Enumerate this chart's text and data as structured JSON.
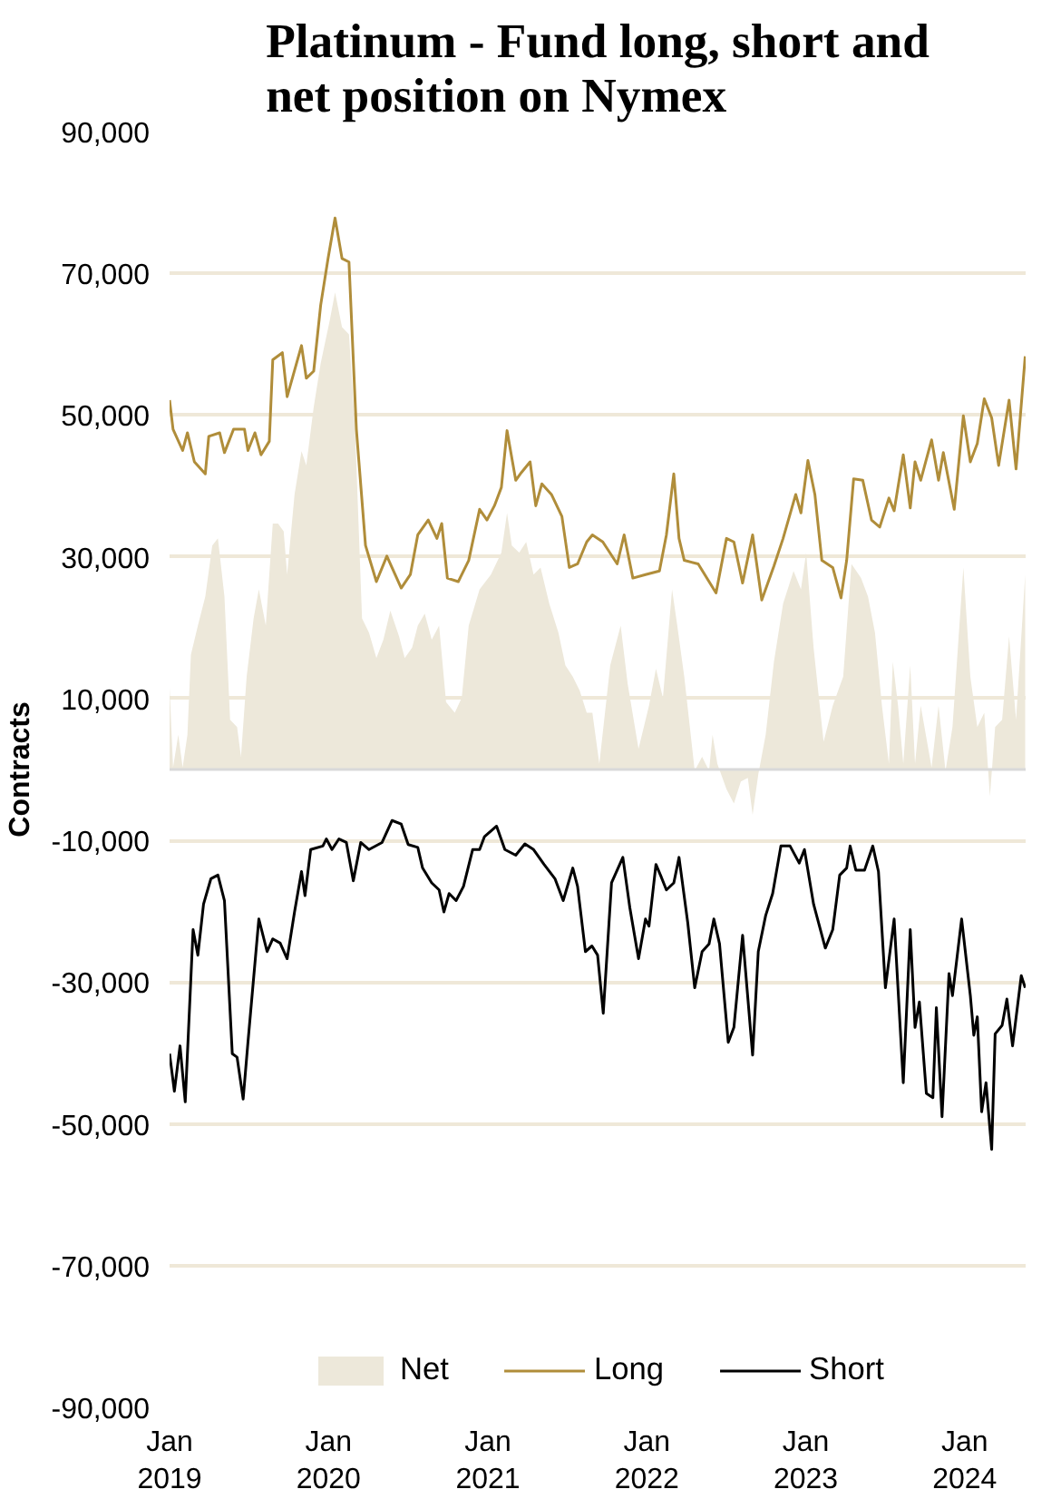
{
  "chart_data": {
    "type": "line",
    "title": "Platinum - Fund long, short and\nnet position on Nymex",
    "ylabel": "Contracts",
    "xlim": [
      "2019-01-01",
      "2024-05-20"
    ],
    "xticks": [
      {
        "value": "2019-01-01",
        "label": "Jan\n2019"
      },
      {
        "value": "2020-01-01",
        "label": "Jan\n2020"
      },
      {
        "value": "2021-01-01",
        "label": "Jan\n2021"
      },
      {
        "value": "2022-01-01",
        "label": "Jan\n2022"
      },
      {
        "value": "2023-01-01",
        "label": "Jan\n2023"
      },
      {
        "value": "2024-01-01",
        "label": "Jan\n2024"
      }
    ],
    "ylim": [
      -90000,
      90000
    ],
    "yticks": [
      {
        "value": 90000,
        "label": "90,000"
      },
      {
        "value": 70000,
        "label": "70,000"
      },
      {
        "value": 50000,
        "label": "50,000"
      },
      {
        "value": 30000,
        "label": "30,000"
      },
      {
        "value": 10000,
        "label": "10,000"
      },
      {
        "value": -10000,
        "label": "-10,000"
      },
      {
        "value": -30000,
        "label": "-30,000"
      },
      {
        "value": -50000,
        "label": "-50,000"
      },
      {
        "value": -70000,
        "label": "-70,000"
      },
      {
        "value": -90000,
        "label": "-90,000"
      }
    ],
    "grid": "y",
    "legend": "bottom",
    "ref_lines": [
      {
        "axis": "y",
        "value": 0,
        "color": "#d9d9d9"
      }
    ],
    "series": [
      {
        "name": "Net",
        "type": "area",
        "color": "#ede8da",
        "x": [
          "2019-01-01",
          "2019-01-09",
          "2019-01-21",
          "2019-01-31",
          "2019-02-11",
          "2019-02-19",
          "2019-03-07",
          "2019-03-24",
          "2019-04-09",
          "2019-04-22",
          "2019-05-07",
          "2019-05-20",
          "2019-06-05",
          "2019-06-14",
          "2019-06-27",
          "2019-07-13",
          "2019-07-25",
          "2019-08-10",
          "2019-08-26",
          "2019-09-07",
          "2019-09-20",
          "2019-09-28",
          "2019-10-15",
          "2019-10-31",
          "2019-11-11",
          "2019-11-28",
          "2019-12-14",
          "2020-01-04",
          "2020-01-16",
          "2020-02-01",
          "2020-02-17",
          "2020-03-02",
          "2020-03-18",
          "2020-04-03",
          "2020-04-20",
          "2020-05-06",
          "2020-05-22",
          "2020-06-11",
          "2020-06-24",
          "2020-07-11",
          "2020-07-24",
          "2020-08-09",
          "2020-08-25",
          "2020-09-11",
          "2020-09-27",
          "2020-10-17",
          "2020-11-02",
          "2020-11-18",
          "2020-12-13",
          "2021-01-08",
          "2021-02-01",
          "2021-02-14",
          "2021-02-25",
          "2021-03-14",
          "2021-03-30",
          "2021-04-16",
          "2021-05-02",
          "2021-05-22",
          "2021-06-12",
          "2021-06-28",
          "2021-07-15",
          "2021-07-31",
          "2021-08-16",
          "2021-08-29",
          "2021-09-14",
          "2021-10-09",
          "2021-11-02",
          "2021-11-18",
          "2021-12-13",
          "2022-01-06",
          "2022-01-22",
          "2022-02-07",
          "2022-02-28",
          "2022-03-12",
          "2022-03-28",
          "2022-04-21",
          "2022-05-08",
          "2022-05-24",
          "2022-06-01",
          "2022-06-12",
          "2022-07-03",
          "2022-07-20",
          "2022-08-05",
          "2022-08-21",
          "2022-09-01",
          "2022-09-14",
          "2022-10-01",
          "2022-10-20",
          "2022-11-10",
          "2022-12-04",
          "2022-12-21",
          "2023-01-02",
          "2023-01-19",
          "2023-02-11",
          "2023-03-04",
          "2023-03-28",
          "2023-04-16",
          "2023-05-08",
          "2023-05-24",
          "2023-06-09",
          "2023-06-25",
          "2023-07-11",
          "2023-07-20",
          "2023-08-01",
          "2023-08-13",
          "2023-08-29",
          "2023-09-09",
          "2023-09-22",
          "2023-10-17",
          "2023-11-02",
          "2023-11-18",
          "2023-12-04",
          "2023-12-29",
          "2024-01-14",
          "2024-01-30",
          "2024-02-15",
          "2024-02-28",
          "2024-03-11",
          "2024-03-27",
          "2024-04-12",
          "2024-04-28",
          "2024-05-19"
        ],
        "values": [
          11600,
          300,
          4900,
          300,
          4900,
          16200,
          20300,
          24400,
          31600,
          32600,
          24400,
          7000,
          6000,
          1800,
          13100,
          21300,
          25400,
          20300,
          34700,
          34700,
          33600,
          27500,
          38800,
          44900,
          42900,
          51100,
          57300,
          63400,
          67300,
          62400,
          61400,
          48000,
          21300,
          19300,
          15700,
          18300,
          22400,
          18800,
          15700,
          17200,
          20300,
          22000,
          18300,
          20300,
          9500,
          8000,
          10100,
          20300,
          25400,
          27500,
          30600,
          36200,
          31600,
          30600,
          32100,
          27500,
          28500,
          23400,
          19300,
          14700,
          13100,
          11100,
          8000,
          8000,
          800,
          14700,
          20300,
          12100,
          2900,
          9000,
          14200,
          10100,
          25400,
          20300,
          13100,
          -200,
          1800,
          -200,
          4900,
          800,
          -2800,
          -4800,
          -1700,
          -1200,
          -6400,
          -700,
          4900,
          15200,
          23400,
          28000,
          25400,
          30600,
          17200,
          3900,
          9000,
          13100,
          29000,
          27000,
          24400,
          19300,
          9000,
          800,
          15200,
          9000,
          800,
          14700,
          800,
          9000,
          300,
          9000,
          -200,
          6000,
          28500,
          13100,
          6000,
          8000,
          -3800,
          6000,
          7000,
          18800,
          7000,
          27500
        ]
      },
      {
        "name": "Long",
        "color": "#b08d3a",
        "x": [
          "2019-01-01",
          "2019-01-09",
          "2019-01-31",
          "2019-02-11",
          "2019-02-27",
          "2019-03-24",
          "2019-04-01",
          "2019-04-26",
          "2019-05-07",
          "2019-05-28",
          "2019-06-22",
          "2019-06-30",
          "2019-07-16",
          "2019-07-30",
          "2019-08-18",
          "2019-08-26",
          "2019-09-17",
          "2019-09-28",
          "2019-10-31",
          "2019-11-11",
          "2019-11-28",
          "2019-12-14",
          "2019-12-31",
          "2020-01-16",
          "2020-02-01",
          "2020-02-17",
          "2020-03-05",
          "2020-03-26",
          "2020-04-20",
          "2020-05-14",
          "2020-06-16",
          "2020-07-07",
          "2020-07-24",
          "2020-08-17",
          "2020-09-06",
          "2020-09-17",
          "2020-09-30",
          "2020-10-25",
          "2020-11-18",
          "2020-12-13",
          "2020-12-30",
          "2021-01-16",
          "2021-02-01",
          "2021-02-14",
          "2021-03-06",
          "2021-03-19",
          "2021-04-08",
          "2021-04-21",
          "2021-05-05",
          "2021-05-27",
          "2021-06-20",
          "2021-07-07",
          "2021-07-26",
          "2021-08-16",
          "2021-08-29",
          "2021-09-22",
          "2021-10-25",
          "2021-11-10",
          "2021-11-30",
          "2021-12-29",
          "2022-01-30",
          "2022-02-15",
          "2022-03-04",
          "2022-03-16",
          "2022-03-28",
          "2022-04-29",
          "2022-05-24",
          "2022-06-09",
          "2022-07-03",
          "2022-07-20",
          "2022-08-09",
          "2022-09-01",
          "2022-09-22",
          "2022-10-20",
          "2022-11-10",
          "2022-12-09",
          "2022-12-21",
          "2023-01-06",
          "2023-01-22",
          "2023-02-07",
          "2023-03-04",
          "2023-03-23",
          "2023-04-05",
          "2023-04-21",
          "2023-05-12",
          "2023-06-01",
          "2023-06-20",
          "2023-07-11",
          "2023-07-23",
          "2023-08-13",
          "2023-08-29",
          "2023-09-09",
          "2023-09-22",
          "2023-10-17",
          "2023-11-02",
          "2023-11-13",
          "2023-12-08",
          "2023-12-29",
          "2024-01-14",
          "2024-01-30",
          "2024-02-15",
          "2024-03-03",
          "2024-03-19",
          "2024-04-12",
          "2024-04-28",
          "2024-05-19"
        ],
        "values": [
          52100,
          48000,
          45000,
          47500,
          43400,
          41700,
          47000,
          47500,
          44700,
          48000,
          48000,
          45000,
          47500,
          44400,
          46300,
          57800,
          58800,
          52600,
          59800,
          55200,
          56200,
          65500,
          72100,
          77800,
          72100,
          71600,
          48000,
          31600,
          26500,
          30100,
          25600,
          27500,
          33100,
          35200,
          32600,
          34700,
          27000,
          26500,
          29500,
          36700,
          35200,
          37200,
          39800,
          47800,
          40800,
          41900,
          43400,
          37200,
          40300,
          38800,
          35700,
          28500,
          29000,
          32100,
          33100,
          32100,
          29000,
          33100,
          27000,
          27500,
          28000,
          33100,
          41700,
          32600,
          29500,
          29000,
          26500,
          24900,
          32600,
          32100,
          26300,
          33100,
          23900,
          28700,
          32600,
          38800,
          36200,
          43600,
          38800,
          29500,
          28500,
          24200,
          29500,
          41000,
          40800,
          35200,
          34200,
          38300,
          36500,
          44400,
          36900,
          43400,
          40800,
          46500,
          40800,
          44700,
          36700,
          49900,
          43400,
          46000,
          52300,
          49600,
          42900,
          52100,
          42400,
          58300
        ]
      },
      {
        "name": "Short",
        "color": "#000000",
        "x": [
          "2019-01-01",
          "2019-01-12",
          "2019-01-25",
          "2019-02-06",
          "2019-02-24",
          "2019-03-07",
          "2019-03-20",
          "2019-04-06",
          "2019-04-22",
          "2019-05-07",
          "2019-05-25",
          "2019-06-05",
          "2019-06-19",
          "2019-06-30",
          "2019-07-25",
          "2019-08-13",
          "2019-08-26",
          "2019-09-12",
          "2019-09-28",
          "2019-10-15",
          "2019-10-31",
          "2019-11-08",
          "2019-11-21",
          "2019-12-19",
          "2019-12-27",
          "2020-01-09",
          "2020-01-25",
          "2020-02-11",
          "2020-02-27",
          "2020-03-15",
          "2020-04-03",
          "2020-05-03",
          "2020-05-26",
          "2020-06-16",
          "2020-07-02",
          "2020-07-24",
          "2020-08-04",
          "2020-08-25",
          "2020-09-11",
          "2020-09-22",
          "2020-10-04",
          "2020-10-20",
          "2020-11-06",
          "2020-11-27",
          "2020-12-13",
          "2020-12-24",
          "2021-01-21",
          "2021-02-09",
          "2021-03-06",
          "2021-03-27",
          "2021-04-16",
          "2021-05-10",
          "2021-06-04",
          "2021-06-23",
          "2021-07-15",
          "2021-07-26",
          "2021-08-13",
          "2021-08-28",
          "2021-09-10",
          "2021-09-23",
          "2021-10-12",
          "2021-11-07",
          "2021-11-23",
          "2021-12-13",
          "2021-12-29",
          "2022-01-06",
          "2022-01-22",
          "2022-02-02",
          "2022-02-15",
          "2022-03-04",
          "2022-03-16",
          "2022-04-05",
          "2022-04-21",
          "2022-05-08",
          "2022-05-24",
          "2022-06-04",
          "2022-06-17",
          "2022-07-07",
          "2022-07-20",
          "2022-08-09",
          "2022-09-01",
          "2022-09-14",
          "2022-10-01",
          "2022-10-17",
          "2022-11-05",
          "2022-11-26",
          "2022-12-17",
          "2022-12-29",
          "2023-01-19",
          "2023-02-15",
          "2023-03-04",
          "2023-03-20",
          "2023-04-05",
          "2023-04-13",
          "2023-04-26",
          "2023-05-16",
          "2023-06-04",
          "2023-06-17",
          "2023-07-03",
          "2023-07-23",
          "2023-08-13",
          "2023-08-29",
          "2023-09-09",
          "2023-09-19",
          "2023-10-05",
          "2023-10-20",
          "2023-10-28",
          "2023-11-10",
          "2023-11-26",
          "2023-12-04",
          "2023-12-25",
          "2024-01-14",
          "2024-01-22",
          "2024-01-30",
          "2024-02-09",
          "2024-02-19",
          "2024-03-03",
          "2024-03-11",
          "2024-03-27",
          "2024-04-07",
          "2024-04-20",
          "2024-05-10",
          "2024-05-19"
        ],
        "values": [
          -40100,
          -45400,
          -39000,
          -46900,
          -22600,
          -26200,
          -19000,
          -15400,
          -14900,
          -18500,
          -40100,
          -40600,
          -46500,
          -38500,
          -21100,
          -25700,
          -23900,
          -24500,
          -26700,
          -20100,
          -14400,
          -17800,
          -11300,
          -10800,
          -9800,
          -11300,
          -9800,
          -10300,
          -15700,
          -10300,
          -11300,
          -10300,
          -7200,
          -7700,
          -10600,
          -11000,
          -13900,
          -16000,
          -17000,
          -20100,
          -17500,
          -18500,
          -16500,
          -11300,
          -11300,
          -9500,
          -8000,
          -11300,
          -12100,
          -10500,
          -11300,
          -13400,
          -15400,
          -18500,
          -13900,
          -16500,
          -25700,
          -24900,
          -26200,
          -34400,
          -16000,
          -12400,
          -19500,
          -26700,
          -21100,
          -22100,
          -13400,
          -15000,
          -17000,
          -16000,
          -12400,
          -21600,
          -30800,
          -25700,
          -24600,
          -21100,
          -24600,
          -38500,
          -36400,
          -23400,
          -40300,
          -25700,
          -20600,
          -17500,
          -10800,
          -10800,
          -13200,
          -11300,
          -19000,
          -25200,
          -22600,
          -14900,
          -13900,
          -10800,
          -14200,
          -14200,
          -10800,
          -14400,
          -30800,
          -21100,
          -44200,
          -22600,
          -36400,
          -32800,
          -45700,
          -46300,
          -33600,
          -49000,
          -28800,
          -31900,
          -21100,
          -31900,
          -37500,
          -34900,
          -48300,
          -44200,
          -53600,
          -37300,
          -36100,
          -32400,
          -39000,
          -29100,
          -30800
        ]
      }
    ]
  }
}
